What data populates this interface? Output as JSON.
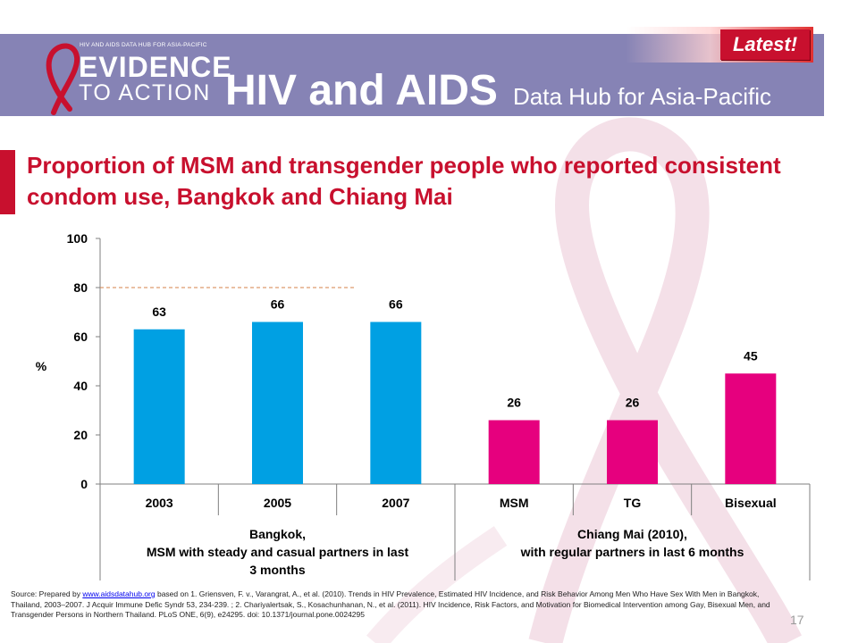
{
  "header": {
    "logo_small": "HIV AND AIDS DATA HUB FOR ASIA-PACIFIC",
    "logo_evidence": "EVIDENCE",
    "logo_to_action": "TO ACTION",
    "title_main": "HIV and AIDS",
    "title_sub": "Data Hub for Asia-Pacific",
    "badge": "Latest!"
  },
  "slide_title": "Proportion of MSM and transgender people who reported consistent condom use, Bangkok and Chiang Mai",
  "chart_data": {
    "type": "bar",
    "ylabel": "%",
    "ylim": [
      0,
      100
    ],
    "yticks": [
      "0",
      "20",
      "40",
      "60",
      "80",
      "100"
    ],
    "categories": [
      "2003",
      "2005",
      "2007",
      "MSM",
      "TG",
      "Bisexual"
    ],
    "values": [
      63,
      66,
      66,
      26,
      26,
      45
    ],
    "data_labels": [
      "63",
      "66",
      "66",
      "26",
      "26",
      "45"
    ],
    "bar_colors": [
      "#00a0e3",
      "#00a0e3",
      "#00a0e3",
      "#e6007e",
      "#e6007e",
      "#e6007e"
    ],
    "reference_line": {
      "value": 80,
      "style": "dashed",
      "color": "#d4824a"
    },
    "groups": [
      {
        "label_lines": [
          "Bangkok,",
          "MSM with steady and casual partners in last",
          "3 months"
        ]
      },
      {
        "label_lines": [
          "Chiang Mai (2010),",
          "with regular partners in last 6 months"
        ]
      }
    ],
    "grid": false,
    "legend": "none"
  },
  "source": {
    "prefix": "Source: Prepared by ",
    "link": "www.aidsdatahub.org",
    "text": " based on 1. Griensven, F. v., Varangrat, A., et al. (2010). Trends in HIV Prevalence, Estimated HIV Incidence, and Risk Behavior Among Men Who Have Sex With Men in Bangkok, Thailand, 2003–2007. J Acquir Immune Defic Syndr 53, 234-239. ; 2. Chariyalertsak, S., Kosachunhanan, N., et al. (2011). HIV Incidence, Risk Factors, and Motivation for Biomedical Intervention among Gay, Bisexual Men, and Transgender Persons in Northern Thailand. PLoS ONE, 6(9), e24295. doi: 10.1371/journal.pone.0024295"
  },
  "page_number": "17"
}
